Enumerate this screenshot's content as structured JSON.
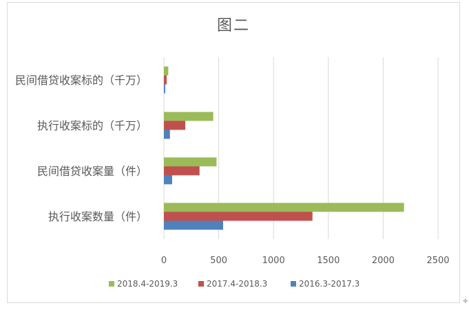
{
  "chart_data": {
    "type": "bar",
    "orientation": "horizontal",
    "title": "图二",
    "categories": [
      "执行收案数量（件）",
      "民间借贷收案量（件）",
      "执行收案标的（千万）",
      "民间借贷收案标的（千万）"
    ],
    "series": [
      {
        "name": "2016.3-2017.3",
        "color": "#4f81bd",
        "values": [
          540,
          75,
          55,
          12
        ]
      },
      {
        "name": "2017.4-2018.3",
        "color": "#c0504d",
        "values": [
          1355,
          325,
          195,
          25
        ]
      },
      {
        "name": "2018.4-2019.3",
        "color": "#9bbb59",
        "values": [
          2190,
          480,
          450,
          40
        ]
      }
    ],
    "xlim": [
      0,
      2500
    ],
    "xticks": [
      "0",
      "500",
      "1000",
      "1500",
      "2000",
      "2500"
    ],
    "grid": true,
    "legend": {
      "position": "bottom",
      "order": [
        "2018.4-2019.3",
        "2017.4-2018.3",
        "2016.3-2017.3"
      ]
    }
  },
  "colors": {
    "gridline": "#d9d9d9",
    "axis_text": "#595959"
  }
}
